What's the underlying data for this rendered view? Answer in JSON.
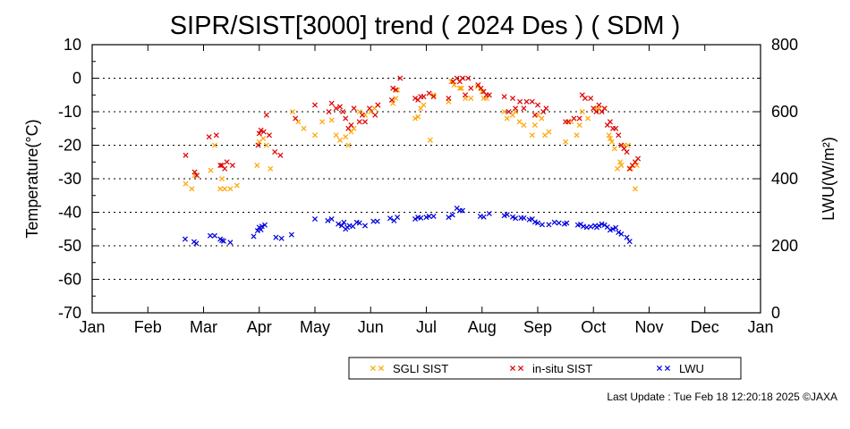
{
  "chart_data": {
    "type": "scatter",
    "title": "SIPR/SIST[3000] trend ( 2024 Des ) ( SDM )",
    "ylabel": "Temperature(°C)",
    "y2label": "LWU(W/m²)",
    "x_domain": [
      0,
      12
    ],
    "categories": [
      "Jan",
      "Feb",
      "Mar",
      "Apr",
      "May",
      "Jun",
      "Jul",
      "Aug",
      "Sep",
      "Oct",
      "Nov",
      "Dec",
      "Jan"
    ],
    "ylim": [
      -70,
      10
    ],
    "yticks": [
      10,
      0,
      -10,
      -20,
      -30,
      -40,
      -50,
      -60,
      -70
    ],
    "y2lim": [
      0,
      800
    ],
    "y2ticks": [
      800,
      600,
      400,
      200,
      0
    ],
    "grid": "horizontal dotted",
    "legend_position": "bottom",
    "colors": {
      "sgli": "#ffa500",
      "insitu": "#e00000",
      "lwu": "#0000dd"
    },
    "series": [
      {
        "name": "SGLI SIST",
        "axis": "left",
        "color": "#ffa500",
        "x": [
          1.68,
          1.79,
          1.84,
          2.13,
          2.2,
          2.3,
          2.33,
          2.38,
          2.48,
          2.6,
          2.96,
          3.0,
          3.07,
          3.13,
          3.2,
          3.6,
          3.7,
          3.8,
          4.0,
          4.13,
          4.3,
          4.38,
          4.45,
          4.55,
          4.6,
          4.65,
          4.7,
          4.8,
          4.9,
          5.0,
          5.07,
          5.13,
          5.4,
          5.45,
          5.48,
          5.8,
          5.85,
          5.9,
          5.95,
          6.07,
          6.13,
          6.4,
          6.45,
          6.5,
          6.6,
          6.63,
          6.7,
          6.8,
          6.92,
          7.0,
          7.03,
          7.08,
          7.4,
          7.45,
          7.55,
          7.6,
          7.67,
          7.75,
          7.9,
          7.95,
          8.0,
          8.07,
          8.13,
          8.2,
          8.5,
          8.6,
          8.7,
          8.75,
          8.8,
          8.9,
          9.05,
          9.1,
          9.2,
          9.28,
          9.3,
          9.33,
          9.38,
          9.43,
          9.48,
          9.5,
          9.55,
          9.62,
          9.67,
          9.75,
          9.78
        ],
        "y": [
          -31.5,
          -33,
          -29,
          -27.5,
          -20,
          -33,
          -30,
          -33,
          -33,
          -32,
          -26,
          -19,
          -18,
          -20,
          -27,
          -10,
          -13,
          -15,
          -17,
          -13,
          -12.5,
          -17,
          -18.5,
          -17.5,
          -20,
          -16,
          -15,
          -10,
          -11,
          -10,
          -9,
          -8,
          -7.5,
          -6,
          -3.5,
          -12,
          -11.5,
          -9,
          -8,
          -18.5,
          -5,
          -7,
          -1,
          -2,
          -3,
          -3,
          -6,
          -6,
          -2.5,
          -4,
          -6,
          -6,
          -10,
          -12,
          -11,
          -10,
          -13,
          -14,
          -17,
          -14,
          -11,
          -12,
          -17,
          -16,
          -19,
          -13,
          -17,
          -14,
          -10,
          -12,
          -9,
          -9,
          -9,
          -17,
          -18,
          -19,
          -21,
          -27,
          -25,
          -26,
          -20,
          -20,
          -27,
          -33,
          -26
        ]
      },
      {
        "name": "in-situ SIST",
        "axis": "left",
        "color": "#e00000",
        "x": [
          1.68,
          1.84,
          1.88,
          2.1,
          2.23,
          2.3,
          2.33,
          2.38,
          2.42,
          2.52,
          2.98,
          3.0,
          3.03,
          3.08,
          3.13,
          3.18,
          3.28,
          3.38,
          3.65,
          4.0,
          4.25,
          4.3,
          4.38,
          4.45,
          4.5,
          4.55,
          4.6,
          4.65,
          4.7,
          4.8,
          4.85,
          4.9,
          4.98,
          5.08,
          5.13,
          5.38,
          5.4,
          5.45,
          5.53,
          5.8,
          5.85,
          5.9,
          5.95,
          6.05,
          6.13,
          6.4,
          6.48,
          6.55,
          6.6,
          6.65,
          6.7,
          6.75,
          6.8,
          6.93,
          6.98,
          7.03,
          7.08,
          7.13,
          7.4,
          7.48,
          7.55,
          7.6,
          7.68,
          7.75,
          7.8,
          7.9,
          7.95,
          8.0,
          8.1,
          8.15,
          8.5,
          8.55,
          8.65,
          8.75,
          8.8,
          8.85,
          8.95,
          9.0,
          9.05,
          9.1,
          9.15,
          9.2,
          9.25,
          9.3,
          9.35,
          9.4,
          9.45,
          9.5,
          9.55,
          9.6,
          9.65,
          9.7,
          9.75,
          9.8
        ],
        "y": [
          -23,
          -28,
          -29,
          -17.5,
          -17,
          -26,
          -26,
          -27,
          -25,
          -26,
          -20,
          -16.5,
          -15.5,
          -16,
          -11,
          -17,
          -22,
          -23,
          -12,
          -8,
          -10,
          -7.5,
          -9,
          -8.5,
          -10,
          -12,
          -15,
          -14,
          -9,
          -13,
          -11,
          -13,
          -9,
          -11,
          -8,
          -6.5,
          -3,
          -3.5,
          0,
          -6,
          -6.5,
          -5.5,
          -5.5,
          -4.5,
          -5.5,
          -6,
          -1,
          0,
          -1,
          0,
          -5,
          0,
          -3,
          -2,
          -3,
          -4,
          -5,
          -5,
          -5.5,
          -10,
          -6,
          -9,
          -7,
          -9,
          -7,
          -7,
          -11,
          -8,
          -10,
          -9,
          -13,
          -13,
          -12,
          -12,
          -5,
          -6,
          -6,
          -9,
          -10,
          -8,
          -10,
          -9,
          -14,
          -13,
          -15,
          -15,
          -17,
          -20,
          -21,
          -22,
          -27,
          -26,
          -25,
          -24
        ]
      },
      {
        "name": "LWU",
        "axis": "right",
        "color": "#0000dd",
        "x": [
          1.67,
          1.83,
          1.87,
          2.12,
          2.2,
          2.3,
          2.33,
          2.36,
          2.48,
          2.9,
          2.97,
          3.0,
          3.03,
          3.05,
          3.1,
          3.3,
          3.4,
          3.58,
          4.0,
          4.23,
          4.3,
          4.42,
          4.48,
          4.52,
          4.55,
          4.58,
          4.62,
          4.68,
          4.75,
          4.8,
          4.9,
          5.05,
          5.12,
          5.35,
          5.42,
          5.48,
          5.8,
          5.85,
          5.9,
          6.0,
          6.05,
          6.13,
          6.4,
          6.47,
          6.55,
          6.6,
          6.65,
          6.97,
          7.03,
          7.13,
          7.4,
          7.45,
          7.55,
          7.6,
          7.7,
          7.75,
          7.85,
          7.9,
          7.95,
          8.0,
          8.08,
          8.2,
          8.3,
          8.38,
          8.48,
          8.52,
          8.72,
          8.77,
          8.82,
          8.88,
          8.95,
          9.03,
          9.06,
          9.1,
          9.15,
          9.2,
          9.25,
          9.3,
          9.35,
          9.4,
          9.45,
          9.5,
          9.6,
          9.65
        ],
        "y": [
          220,
          212,
          207,
          230,
          230,
          220,
          216,
          214,
          210,
          228,
          245,
          255,
          248,
          258,
          262,
          225,
          222,
          233,
          280,
          275,
          280,
          265,
          260,
          270,
          250,
          255,
          260,
          258,
          270,
          268,
          260,
          273,
          273,
          282,
          275,
          285,
          280,
          285,
          283,
          285,
          288,
          288,
          285,
          292,
          312,
          305,
          305,
          288,
          286,
          296,
          290,
          293,
          286,
          282,
          283,
          283,
          278,
          280,
          271,
          268,
          263,
          263,
          270,
          268,
          265,
          268,
          262,
          264,
          258,
          255,
          257,
          260,
          255,
          260,
          265,
          262,
          256,
          247,
          250,
          254,
          240,
          235,
          225,
          213
        ]
      }
    ]
  },
  "footer": {
    "last_update": "Last Update : Tue Feb 18 12:20:18 2025  ©JAXA"
  }
}
